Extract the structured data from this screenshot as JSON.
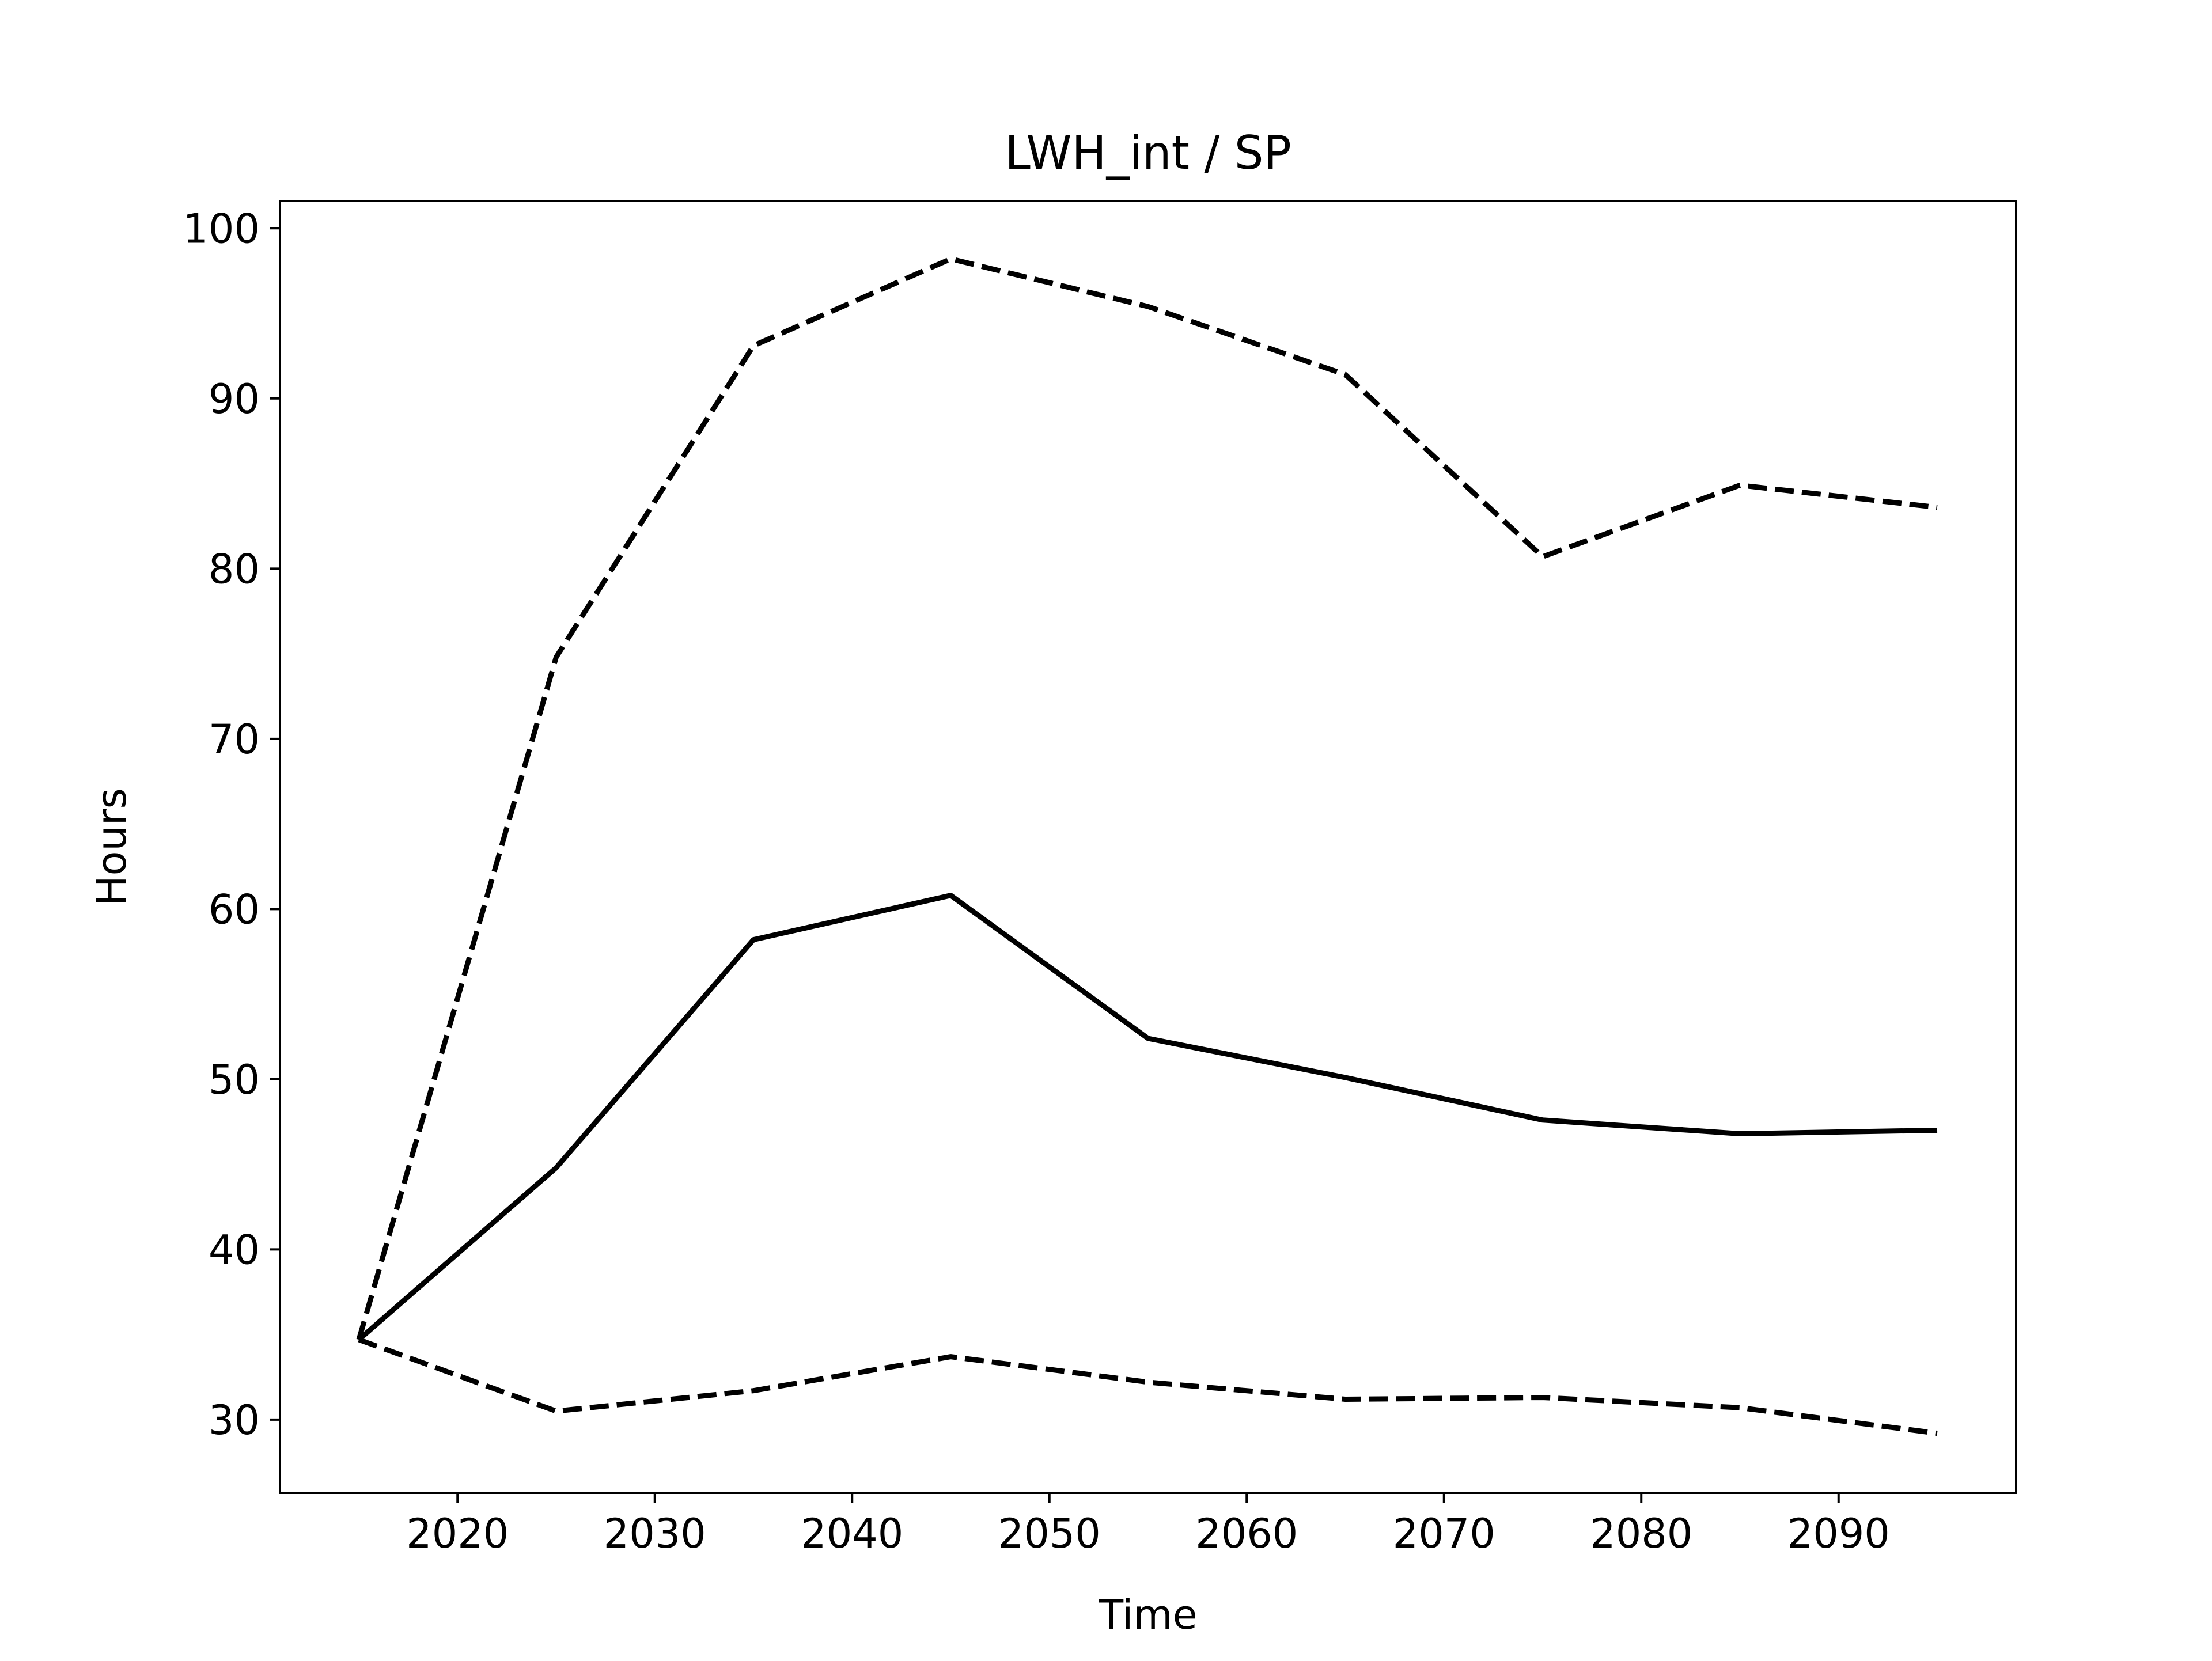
{
  "chart_data": {
    "type": "line",
    "title": "LWH_int / SP",
    "xlabel": "Time",
    "ylabel": "Hours",
    "xlim": [
      2011,
      2099
    ],
    "ylim": [
      25.7,
      101.6
    ],
    "x_ticks": [
      2020,
      2030,
      2040,
      2050,
      2060,
      2070,
      2080,
      2090
    ],
    "y_ticks": [
      30,
      40,
      50,
      60,
      70,
      80,
      90,
      100
    ],
    "grid": false,
    "legend": "none",
    "x": [
      2015,
      2025,
      2035,
      2045,
      2055,
      2065,
      2075,
      2085,
      2095
    ],
    "series": [
      {
        "style": "dashed",
        "color": "#000000",
        "values": [
          34.7,
          74.8,
          93.1,
          98.2,
          95.4,
          91.4,
          80.7,
          84.9,
          83.6
        ]
      },
      {
        "style": "solid",
        "color": "#000000",
        "values": [
          34.7,
          44.8,
          58.2,
          60.8,
          52.4,
          50.1,
          47.6,
          46.8,
          47.0
        ]
      },
      {
        "style": "dashed",
        "color": "#000000",
        "values": [
          34.7,
          30.5,
          31.7,
          33.7,
          32.2,
          31.2,
          31.3,
          30.7,
          29.2
        ]
      }
    ]
  }
}
